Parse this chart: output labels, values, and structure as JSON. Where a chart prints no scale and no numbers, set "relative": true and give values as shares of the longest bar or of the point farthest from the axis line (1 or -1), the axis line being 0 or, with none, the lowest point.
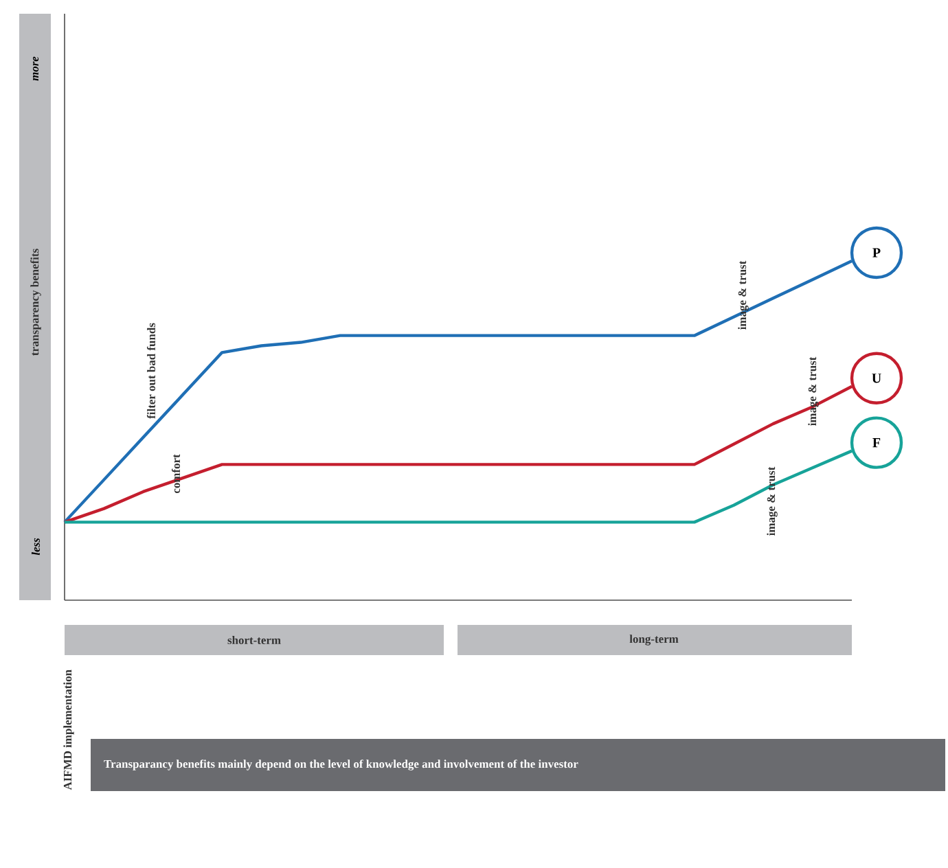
{
  "chart_data": {
    "type": "line",
    "relative": true,
    "ylabel": "transparency benefits",
    "marker": "none",
    "legend": "right",
    "categories": [
      null,
      null,
      null,
      null,
      null,
      null,
      null,
      null,
      null,
      null,
      null,
      null,
      null,
      null,
      null,
      null,
      null,
      null,
      null,
      null,
      null
    ],
    "series": [
      {
        "name": "P",
        "color": "#1f6fb5",
        "values": [
          0.23,
          0.355,
          0.48,
          0.605,
          0.73,
          0.75,
          0.76,
          0.78,
          0.78,
          0.78,
          0.78,
          0.78,
          0.78,
          0.78,
          0.78,
          0.78,
          0.78,
          0.835,
          0.89,
          0.945,
          1.0
        ]
      },
      {
        "name": "U",
        "color": "#c41e2e",
        "values": [
          0.23,
          0.27,
          0.32,
          0.36,
          0.4,
          0.4,
          0.4,
          0.4,
          0.4,
          0.4,
          0.4,
          0.4,
          0.4,
          0.4,
          0.4,
          0.4,
          0.4,
          0.46,
          0.52,
          0.57,
          0.63
        ]
      },
      {
        "name": "F",
        "color": "#17a399",
        "values": [
          0.23,
          0.23,
          0.23,
          0.23,
          0.23,
          0.23,
          0.23,
          0.23,
          0.23,
          0.23,
          0.23,
          0.23,
          0.23,
          0.23,
          0.23,
          0.23,
          0.23,
          0.28,
          0.34,
          0.39,
          0.44
        ]
      }
    ],
    "annotations": [
      "more",
      "less",
      "short-term",
      "long-term",
      "AIFMD implementation",
      "Transparancy benefits mainly depend on the level of knowledge and involvement of the investor",
      "filter out bad funds",
      "comfort",
      "image & trust",
      "image & trust",
      "image & trust"
    ]
  }
}
